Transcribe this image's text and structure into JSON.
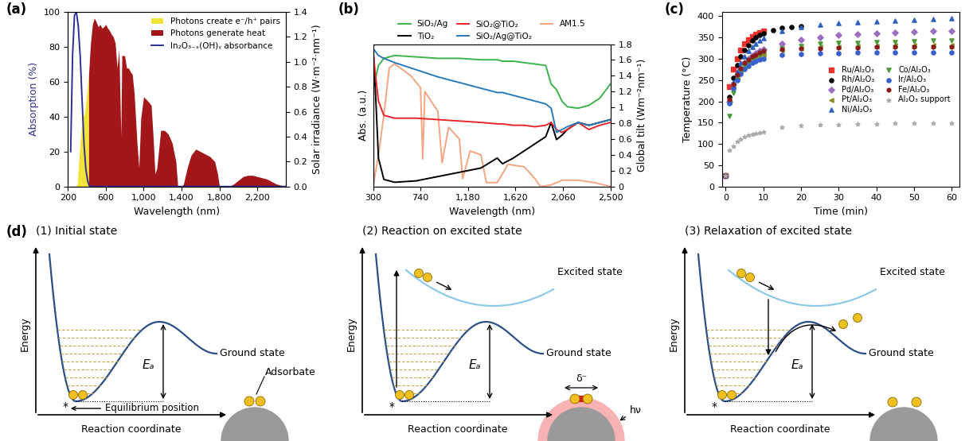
{
  "chart_data": [
    {
      "panel": "(a)",
      "type": "line",
      "x_label": "Wavelength (nm)",
      "y_label": "Absorption (%)",
      "y2_label": "Solar irradiance (W·m⁻²·nm⁻¹)",
      "xlim": [
        200,
        2500
      ],
      "xticks": [
        200,
        600,
        {
          "value": 1000,
          "label": "1,000"
        },
        {
          "value": 1400,
          "label": "1,400"
        },
        {
          "value": 1800,
          "label": "1,800"
        },
        {
          "value": 2200,
          "label": "2,200"
        }
      ],
      "ylim": [
        0,
        100
      ],
      "yticks": [
        0,
        20,
        40,
        60,
        80,
        100
      ],
      "y2lim": [
        0,
        1.4
      ],
      "y2ticks": [
        {
          "value": 0,
          "label": "0.0"
        },
        0.2,
        0.4,
        0.6,
        0.8,
        {
          "value": 1,
          "label": "1.0"
        },
        1.2,
        1.4
      ],
      "legend": "upper right",
      "series": [
        {
          "name": "Photons create e⁻/h⁺ pairs",
          "type": "area",
          "axis": "y2",
          "color": "#f2e33a",
          "x": [
            280,
            300,
            320,
            340,
            360,
            380,
            400,
            420
          ],
          "values": [
            0,
            0.02,
            0.25,
            0.45,
            0.55,
            0.6,
            0.75,
            0.9
          ]
        },
        {
          "name": "Photons generate heat",
          "type": "area",
          "axis": "y2",
          "color": "#a3161a",
          "x": [
            420,
            440,
            460,
            480,
            500,
            520,
            540,
            560,
            580,
            600,
            620,
            640,
            660,
            680,
            700,
            720,
            740,
            760,
            770,
            800,
            820,
            840,
            860,
            880,
            900,
            930,
            950,
            970,
            1000,
            1050,
            1080,
            1100,
            1120,
            1140,
            1180,
            1220,
            1260,
            1300,
            1340,
            1360,
            1400,
            1420,
            1460,
            1500,
            1550,
            1600,
            1650,
            1700,
            1750,
            1780,
            1800,
            1900,
            1950,
            2000,
            2050,
            2100,
            2150,
            2200,
            2250,
            2300,
            2350,
            2400,
            2450,
            2500
          ],
          "values": [
            0.9,
            1.15,
            1.3,
            1.35,
            1.32,
            1.28,
            1.3,
            1.27,
            1.28,
            1.3,
            1.27,
            1.25,
            1.22,
            1.2,
            1.15,
            0.95,
            1.1,
            0.4,
            1.05,
            1.05,
            0.95,
            0.95,
            0.92,
            0.9,
            0.75,
            0.35,
            0.15,
            0.55,
            0.72,
            0.68,
            0.65,
            0.4,
            0.1,
            0.15,
            0.45,
            0.45,
            0.42,
            0.35,
            0.2,
            0,
            0,
            0.02,
            0.15,
            0.25,
            0.3,
            0.28,
            0.26,
            0.24,
            0.2,
            0.1,
            0,
            0,
            0.02,
            0.05,
            0.08,
            0.09,
            0.09,
            0.08,
            0.07,
            0.06,
            0.04,
            0.02,
            0.01,
            0
          ]
        },
        {
          "name": "In₂O₃₋ₓ(OH)ᵧ absorbance",
          "type": "line",
          "color": "#2e3192",
          "x": [
            230,
            250,
            270,
            290,
            310,
            330,
            350,
            370,
            390,
            410,
            430,
            2500
          ],
          "values": [
            20,
            75,
            98,
            100,
            92,
            75,
            50,
            25,
            10,
            3,
            0,
            0
          ]
        }
      ]
    },
    {
      "panel": "(b)",
      "type": "line",
      "x_label": "Wavelength (nm)",
      "y_label": "Abs. (a.u.)",
      "y2_label": "Global tilt (Wm⁻²nm⁻¹)",
      "xlim": [
        300,
        2500
      ],
      "xticks": [
        300,
        740,
        {
          "value": 1180,
          "label": "1,180"
        },
        {
          "value": 1620,
          "label": "1,620"
        },
        {
          "value": 2060,
          "label": "2,060"
        },
        {
          "value": 2500,
          "label": "2,500"
        }
      ],
      "ylim": [
        0,
        1
      ],
      "yticks": [],
      "y2lim": [
        0,
        1.8
      ],
      "y2ticks": [
        0,
        0.2,
        0.4,
        0.6,
        0.8,
        1,
        1.2,
        1.4,
        1.6,
        1.8
      ],
      "legend": "upper center",
      "series": [
        {
          "name": "SiO₂/Ag",
          "color": "#3cb44b",
          "x": [
            300,
            320,
            350,
            400,
            500,
            700,
            900,
            1100,
            1300,
            1450,
            1500,
            1600,
            1700,
            1800,
            1900,
            1950,
            2000,
            2050,
            2100,
            2200,
            2300,
            2400,
            2500
          ],
          "values": [
            0.92,
            0.75,
            0.85,
            0.9,
            0.92,
            0.91,
            0.9,
            0.9,
            0.89,
            0.89,
            0.88,
            0.88,
            0.87,
            0.86,
            0.85,
            0.72,
            0.68,
            0.6,
            0.56,
            0.55,
            0.57,
            0.62,
            0.72
          ]
        },
        {
          "name": "TiO₂",
          "color": "#000000",
          "x": [
            300,
            320,
            350,
            400,
            500,
            700,
            900,
            1100,
            1300,
            1450,
            1500,
            1600,
            1700,
            1800,
            1900,
            1950,
            2000,
            2050,
            2100,
            2200,
            2300,
            2400,
            2500
          ],
          "values": [
            0.98,
            0.7,
            0.2,
            0.05,
            0.03,
            0.04,
            0.07,
            0.1,
            0.13,
            0.2,
            0.16,
            0.2,
            0.25,
            0.3,
            0.35,
            0.45,
            0.33,
            0.36,
            0.4,
            0.45,
            0.43,
            0.45,
            0.47
          ]
        },
        {
          "name": "SiO₂@TiO₂",
          "color": "#e8262b",
          "x": [
            300,
            320,
            350,
            400,
            500,
            700,
            900,
            1100,
            1300,
            1450,
            1500,
            1600,
            1700,
            1800,
            1900,
            1950,
            2000,
            2050,
            2100,
            2200,
            2300,
            2400,
            2500
          ],
          "values": [
            0.95,
            0.8,
            0.6,
            0.5,
            0.48,
            0.48,
            0.47,
            0.46,
            0.45,
            0.44,
            0.44,
            0.43,
            0.43,
            0.42,
            0.43,
            0.45,
            0.4,
            0.38,
            0.4,
            0.45,
            0.4,
            0.43,
            0.45
          ]
        },
        {
          "name": "SiO₂/Ag@TiO₂",
          "color": "#2a7ab9",
          "x": [
            300,
            320,
            350,
            400,
            500,
            700,
            900,
            1100,
            1300,
            1450,
            1500,
            1600,
            1700,
            1800,
            1900,
            1950,
            2000,
            2050,
            2100,
            2200,
            2300,
            2400,
            2500
          ],
          "values": [
            0.97,
            0.95,
            0.92,
            0.9,
            0.87,
            0.82,
            0.77,
            0.73,
            0.69,
            0.66,
            0.66,
            0.64,
            0.62,
            0.6,
            0.58,
            0.55,
            0.38,
            0.4,
            0.42,
            0.45,
            0.43,
            0.45,
            0.47
          ]
        },
        {
          "name": "AM1.5",
          "axis": "y2",
          "color": "#f4a582",
          "x": [
            300,
            350,
            400,
            450,
            500,
            550,
            650,
            740,
            760,
            780,
            900,
            940,
            1000,
            1100,
            1130,
            1200,
            1300,
            1350,
            1450,
            1550,
            1700,
            1800,
            1850,
            1950,
            2050,
            2200,
            2350,
            2500
          ],
          "values": [
            0,
            0.4,
            0.9,
            1.5,
            1.55,
            1.5,
            1.4,
            1.25,
            0.35,
            1.2,
            0.95,
            0.3,
            0.75,
            0.6,
            0.1,
            0.45,
            0.4,
            0.05,
            0.05,
            0.28,
            0.25,
            0.1,
            0,
            0.02,
            0.08,
            0.08,
            0.05,
            0
          ]
        }
      ]
    },
    {
      "panel": "(c)",
      "type": "scatter",
      "x_label": "Time (min)",
      "y_label": "Temperature (°C)",
      "xlim": [
        -1,
        62
      ],
      "xticks": [
        0,
        10,
        20,
        30,
        40,
        50,
        60
      ],
      "ylim": [
        0,
        410
      ],
      "yticks": [
        0,
        50,
        100,
        150,
        200,
        250,
        300,
        350,
        400
      ],
      "legend": "center right",
      "series": [
        {
          "name": "Ru/Al₂O₃",
          "color": "#e8312a",
          "marker": "square",
          "x": [
            0,
            1,
            2,
            3,
            4,
            5,
            6,
            7,
            8,
            9,
            10
          ],
          "values": [
            25,
            235,
            275,
            300,
            320,
            335,
            345,
            352,
            358,
            362,
            365
          ]
        },
        {
          "name": "Rh/Al₂O₃",
          "color": "#000000",
          "marker": "circle",
          "x": [
            0,
            1,
            2,
            3,
            4,
            5,
            6,
            7,
            8,
            9,
            10,
            12.5,
            15,
            17.5,
            20
          ],
          "values": [
            25,
            210,
            255,
            285,
            305,
            320,
            332,
            342,
            350,
            355,
            360,
            367,
            372,
            375,
            376
          ]
        },
        {
          "name": "Pd/Al₂O₃",
          "color": "#9b6fc0",
          "marker": "diamond",
          "x": [
            0,
            1,
            2,
            3,
            4,
            5,
            6,
            7,
            8,
            9,
            10,
            15,
            20,
            25,
            30,
            35,
            40,
            45,
            50,
            55,
            60
          ],
          "values": [
            25,
            200,
            240,
            262,
            278,
            290,
            300,
            307,
            313,
            318,
            322,
            335,
            345,
            350,
            355,
            358,
            360,
            362,
            364,
            365,
            366
          ]
        },
        {
          "name": "Pt/Al₂O₃",
          "color": "#8b8b2a",
          "marker": "triangle_left",
          "x": [
            0,
            1,
            2,
            3,
            4,
            5,
            6,
            7,
            8,
            9,
            10,
            15,
            20,
            25,
            30,
            35,
            40,
            45,
            50,
            55,
            60
          ],
          "values": [
            25,
            200,
            235,
            255,
            270,
            282,
            292,
            298,
            303,
            307,
            310,
            320,
            325,
            327,
            328,
            330,
            330,
            331,
            331,
            332,
            332
          ]
        },
        {
          "name": "Ni/Al₂O₃",
          "color": "#2f5fbf",
          "marker": "triangle_up",
          "x": [
            0,
            1,
            2,
            3,
            4,
            5,
            6,
            7,
            8,
            9,
            10,
            15,
            20,
            25,
            30,
            35,
            40,
            45,
            50,
            55,
            60
          ],
          "values": [
            25,
            205,
            245,
            270,
            290,
            305,
            318,
            328,
            335,
            342,
            348,
            365,
            375,
            380,
            383,
            386,
            388,
            390,
            392,
            394,
            395
          ]
        },
        {
          "name": "Co/Al₂O₃",
          "color": "#4a9a3a",
          "marker": "triangle_down",
          "x": [
            0,
            1,
            2,
            3,
            4,
            5,
            6,
            7,
            8,
            9,
            10,
            15,
            20,
            25,
            30,
            35,
            40,
            45,
            50,
            55,
            60
          ],
          "values": [
            25,
            165,
            220,
            250,
            270,
            283,
            293,
            300,
            305,
            310,
            314,
            325,
            330,
            335,
            337,
            338,
            340,
            340,
            341,
            342,
            342
          ]
        },
        {
          "name": "Ir/Al₂O₃",
          "color": "#3a5fcf",
          "marker": "circle",
          "x": [
            0,
            1,
            2,
            3,
            4,
            5,
            6,
            7,
            8,
            9,
            10,
            15,
            20,
            25,
            30,
            35,
            40,
            45,
            50,
            55,
            60
          ],
          "values": [
            25,
            195,
            230,
            250,
            265,
            275,
            283,
            290,
            295,
            298,
            300,
            310,
            312,
            313,
            313,
            314,
            314,
            314,
            315,
            315,
            315
          ]
        },
        {
          "name": "Fe/Al₂O₃",
          "color": "#8b1a1a",
          "marker": "hexagon",
          "x": [
            0,
            1,
            2,
            3,
            4,
            5,
            6,
            7,
            8,
            9,
            10,
            15,
            20,
            25,
            30,
            35,
            40,
            45,
            50,
            55,
            60
          ],
          "values": [
            25,
            205,
            240,
            262,
            278,
            290,
            298,
            305,
            310,
            315,
            318,
            322,
            325,
            325,
            326,
            326,
            327,
            327,
            327,
            328,
            328
          ]
        },
        {
          "name": "Al₂O₃ support",
          "color": "#aaaaaa",
          "marker": "star",
          "x": [
            0,
            1,
            2,
            3,
            4,
            5,
            6,
            7,
            8,
            9,
            10,
            15,
            20,
            25,
            30,
            35,
            40,
            45,
            50,
            55,
            60
          ],
          "values": [
            25,
            85,
            95,
            105,
            112,
            117,
            120,
            123,
            125,
            127,
            128,
            140,
            143,
            145,
            146,
            147,
            147,
            148,
            148,
            149,
            149
          ]
        }
      ]
    }
  ],
  "diagram": {
    "panel": "(d)",
    "axis_labels": {
      "y": "Energy",
      "x": "Reaction coordinate"
    },
    "subpanels": [
      {
        "title": "(1) Initial state",
        "curves": {
          "ground": "Ground state"
        },
        "barrier": "Eₐ",
        "site": "*",
        "notes": {
          "adsorbate": "Adsorbate",
          "equilibrium": "Equilibrium position"
        }
      },
      {
        "title": "(2) Reaction on excited state",
        "curves": {
          "ground": "Ground state",
          "excited": "Excited state"
        },
        "barrier": "Eₐ",
        "site": "*",
        "notes": {
          "charge": "δ⁻",
          "photon": "hν"
        }
      },
      {
        "title": "(3) Relaxation of excited state",
        "curves": {
          "ground": "Ground state",
          "excited": "Excited state"
        },
        "barrier": "Eₐ",
        "site": "*"
      }
    ]
  }
}
